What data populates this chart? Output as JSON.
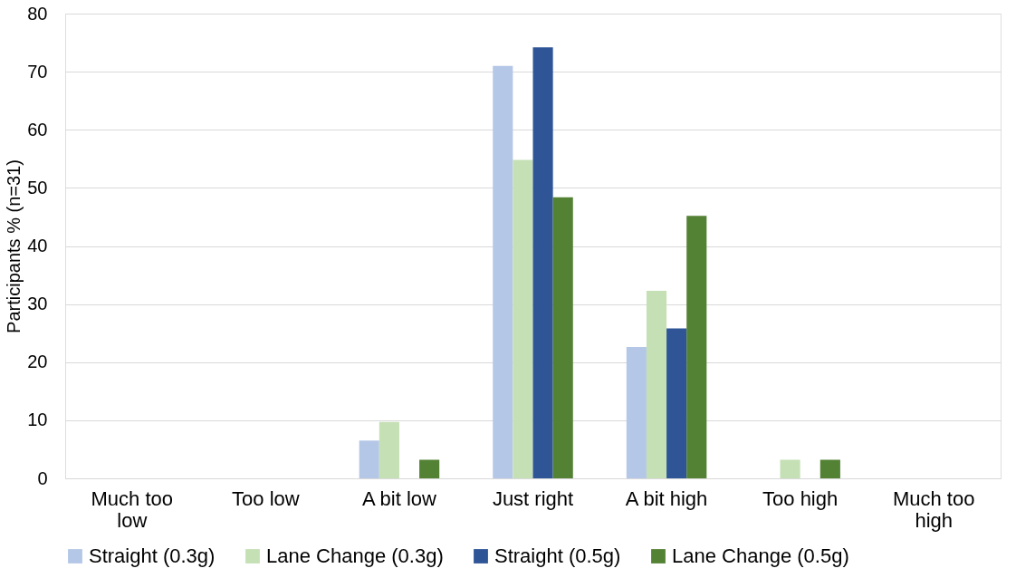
{
  "chart_data": {
    "type": "bar",
    "ylabel": "Participants % (n=31)",
    "categories": [
      "Much too low",
      "Too low",
      "A bit low",
      "Just right",
      "A bit high",
      "Too high",
      "Much too high"
    ],
    "series": [
      {
        "name": "Straight (0.3g)",
        "color": "#b4c7e7",
        "values": [
          0,
          0,
          6.5,
          71.0,
          22.6,
          0,
          0
        ]
      },
      {
        "name": "Lane Change (0.3g)",
        "color": "#c5e0b4",
        "values": [
          0,
          0,
          9.7,
          54.8,
          32.3,
          3.2,
          0
        ]
      },
      {
        "name": "Straight (0.5g)",
        "color": "#2f5597",
        "values": [
          0,
          0,
          0,
          74.2,
          25.8,
          0,
          0
        ]
      },
      {
        "name": "Lane Change (0.5g)",
        "color": "#548235",
        "values": [
          0,
          0,
          3.2,
          48.4,
          45.2,
          3.2,
          0
        ]
      }
    ],
    "ylim": [
      0,
      80
    ],
    "yticks": [
      0,
      10,
      20,
      30,
      40,
      50,
      60,
      70,
      80
    ],
    "grid": "y",
    "legend": "bottom"
  }
}
